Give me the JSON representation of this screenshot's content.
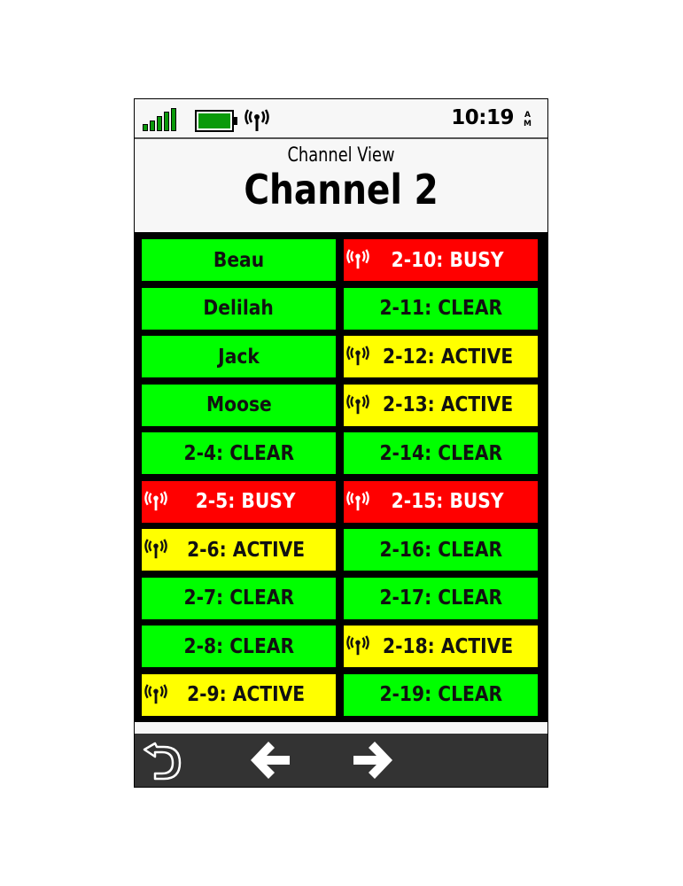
{
  "status_bar": {
    "time": "10:19",
    "am_pm": [
      "A",
      "M"
    ],
    "signal_bars": 5,
    "battery_level": 1.0
  },
  "header": {
    "subtitle": "Channel View",
    "title": "Channel 2"
  },
  "colors": {
    "clear": "#00ff00",
    "active": "#ffff00",
    "busy": "#ff0000"
  },
  "channels": {
    "left": [
      {
        "label": "Beau",
        "status": "clear",
        "icon": ""
      },
      {
        "label": "Delilah",
        "status": "clear",
        "icon": ""
      },
      {
        "label": "Jack",
        "status": "clear",
        "icon": ""
      },
      {
        "label": "Moose",
        "status": "clear",
        "icon": ""
      },
      {
        "label": "2-4: CLEAR",
        "status": "clear",
        "icon": ""
      },
      {
        "label": "2-5: BUSY",
        "status": "busy",
        "icon": "radio-icon"
      },
      {
        "label": "2-6: ACTIVE",
        "status": "active",
        "icon": "radio-icon"
      },
      {
        "label": "2-7: CLEAR",
        "status": "clear",
        "icon": ""
      },
      {
        "label": "2-8: CLEAR",
        "status": "clear",
        "icon": ""
      },
      {
        "label": "2-9: ACTIVE",
        "status": "active",
        "icon": "radio-icon"
      }
    ],
    "right": [
      {
        "label": "2-10: BUSY",
        "status": "busy",
        "icon": "radio-icon"
      },
      {
        "label": "2-11: CLEAR",
        "status": "clear",
        "icon": ""
      },
      {
        "label": "2-12: ACTIVE",
        "status": "active",
        "icon": "radio-icon"
      },
      {
        "label": "2-13: ACTIVE",
        "status": "active",
        "icon": "radio-icon"
      },
      {
        "label": "2-14: CLEAR",
        "status": "clear",
        "icon": ""
      },
      {
        "label": "2-15: BUSY",
        "status": "busy",
        "icon": "radio-icon"
      },
      {
        "label": "2-16: CLEAR",
        "status": "clear",
        "icon": ""
      },
      {
        "label": "2-17: CLEAR",
        "status": "clear",
        "icon": ""
      },
      {
        "label": "2-18: ACTIVE",
        "status": "active",
        "icon": "radio-icon"
      },
      {
        "label": "2-19: CLEAR",
        "status": "clear",
        "icon": ""
      }
    ]
  },
  "bottom_bar": {
    "buttons": [
      "back-icon",
      "arrow-left-icon",
      "arrow-right-icon"
    ]
  }
}
